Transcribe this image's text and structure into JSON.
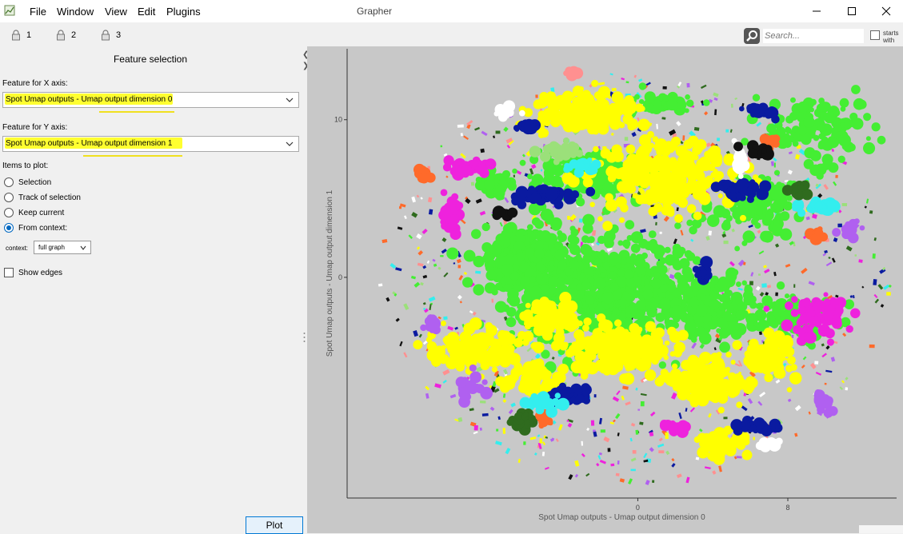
{
  "window": {
    "title": "Grapher",
    "menu": [
      "File",
      "Window",
      "View",
      "Edit",
      "Plugins"
    ]
  },
  "toolbar": {
    "locks": [
      "1",
      "2",
      "3"
    ],
    "search_placeholder": "Search...",
    "starts_with_label_1": "starts",
    "starts_with_label_2": "with"
  },
  "panel": {
    "title": "Feature selection",
    "x_label": "Feature for X axis:",
    "x_value": "Spot Umap outputs - Umap output dimension 0",
    "y_label": "Feature for Y axis:",
    "y_value": "Spot Umap outputs - Umap output dimension 1",
    "items_label": "Items to plot:",
    "radios": [
      {
        "label": "Selection",
        "checked": false
      },
      {
        "label": "Track of selection",
        "checked": false
      },
      {
        "label": "Keep current",
        "checked": false
      },
      {
        "label": "From context:",
        "checked": true
      }
    ],
    "context_label": "context:",
    "context_value": "full graph",
    "show_edges_label": "Show edges",
    "show_edges_checked": false,
    "plot_button": "Plot"
  },
  "chart_data": {
    "type": "scatter",
    "xlabel": "Spot Umap outputs - Umap output dimension 0",
    "ylabel": "Spot Umap outputs - Umap output dimension 1",
    "x_ticks": [
      0,
      8
    ],
    "y_ticks": [
      10,
      0
    ],
    "xlim": [
      -15.5,
      13.8
    ],
    "ylim": [
      -14,
      14.5
    ],
    "grid": false,
    "colors": {
      "green": "#44ee33",
      "yellow": "#ffff00",
      "navy": "#0a1aa0",
      "magenta": "#ee22dd",
      "orange": "#ff6a2a",
      "cyan": "#33eeee",
      "violet": "#b060f0",
      "darkgreen": "#2f6b1e",
      "white": "#ffffff",
      "black": "#111111",
      "lightgreen": "#9be07a",
      "pink": "#ff9090"
    },
    "clusters": [
      {
        "color": "green",
        "x": -1.7,
        "y": -1,
        "sx": 4.8,
        "sy": 3.2,
        "n": 700
      },
      {
        "color": "green",
        "x": -6,
        "y": 1,
        "sx": 2.2,
        "sy": 2.0,
        "n": 250
      },
      {
        "color": "green",
        "x": 4,
        "y": -2,
        "sx": 2.2,
        "sy": 1.8,
        "n": 200
      },
      {
        "color": "green",
        "x": 6.5,
        "y": 4.5,
        "sx": 1.8,
        "sy": 1.6,
        "n": 120
      },
      {
        "color": "green",
        "x": -2,
        "y": 6.5,
        "sx": 3,
        "sy": 1.2,
        "n": 180
      },
      {
        "color": "green",
        "x": 8.5,
        "y": -2.5,
        "sx": 1.8,
        "sy": 1.2,
        "n": 100
      },
      {
        "color": "green",
        "x": 9.5,
        "y": 9.5,
        "sx": 2.5,
        "sy": 2.0,
        "n": 120
      },
      {
        "color": "green",
        "x": -7.5,
        "y": 6,
        "sx": 0.8,
        "sy": 1,
        "n": 40
      },
      {
        "color": "green",
        "x": 1.5,
        "y": 11,
        "sx": 1.5,
        "sy": 0.6,
        "n": 50
      },
      {
        "color": "yellow",
        "x": -1,
        "y": -4.5,
        "sx": 2.5,
        "sy": 1.2,
        "n": 220
      },
      {
        "color": "yellow",
        "x": -3,
        "y": 10.5,
        "sx": 2.3,
        "sy": 1.0,
        "n": 180
      },
      {
        "color": "yellow",
        "x": 1.5,
        "y": 6.5,
        "sx": 3.2,
        "sy": 2.0,
        "n": 320
      },
      {
        "color": "yellow",
        "x": -8.5,
        "y": -4.5,
        "sx": 2.2,
        "sy": 1.2,
        "n": 150
      },
      {
        "color": "yellow",
        "x": 3.5,
        "y": -6.5,
        "sx": 2.0,
        "sy": 1.2,
        "n": 170
      },
      {
        "color": "yellow",
        "x": 7,
        "y": -5,
        "sx": 1.3,
        "sy": 1.2,
        "n": 100
      },
      {
        "color": "yellow",
        "x": -4.5,
        "y": -2.5,
        "sx": 1.3,
        "sy": 1.0,
        "n": 80
      },
      {
        "color": "yellow",
        "x": 4.5,
        "y": -10.5,
        "sx": 1.0,
        "sy": 0.7,
        "n": 50
      },
      {
        "color": "yellow",
        "x": -5.5,
        "y": -6.5,
        "sx": 1.5,
        "sy": 0.8,
        "n": 60
      },
      {
        "color": "navy",
        "x": -5,
        "y": 5.2,
        "sx": 1.6,
        "sy": 0.35,
        "n": 70
      },
      {
        "color": "navy",
        "x": 5.5,
        "y": 5.5,
        "sx": 0.8,
        "sy": 0.5,
        "n": 40
      },
      {
        "color": "navy",
        "x": -3.5,
        "y": -7.5,
        "sx": 0.9,
        "sy": 0.5,
        "n": 40
      },
      {
        "color": "navy",
        "x": 6.5,
        "y": 10.5,
        "sx": 0.9,
        "sy": 0.3,
        "n": 25
      },
      {
        "color": "navy",
        "x": -6,
        "y": 9.5,
        "sx": 0.5,
        "sy": 0.3,
        "n": 15
      },
      {
        "color": "navy",
        "x": 6.5,
        "y": -9.5,
        "sx": 1.2,
        "sy": 0.3,
        "n": 30
      },
      {
        "color": "navy",
        "x": 3.5,
        "y": 0.3,
        "sx": 0.3,
        "sy": 0.5,
        "n": 15
      },
      {
        "color": "magenta",
        "x": 9.5,
        "y": -2.5,
        "sx": 1.4,
        "sy": 1.0,
        "n": 80
      },
      {
        "color": "magenta",
        "x": -9,
        "y": 7,
        "sx": 1.0,
        "sy": 0.4,
        "n": 40
      },
      {
        "color": "magenta",
        "x": -10,
        "y": 4,
        "sx": 0.5,
        "sy": 1.0,
        "n": 25
      },
      {
        "color": "magenta",
        "x": 2,
        "y": -9.5,
        "sx": 0.6,
        "sy": 0.3,
        "n": 15
      },
      {
        "color": "orange",
        "x": -11.5,
        "y": 6.5,
        "sx": 0.4,
        "sy": 0.4,
        "n": 15
      },
      {
        "color": "orange",
        "x": 7,
        "y": 8.5,
        "sx": 0.4,
        "sy": 0.4,
        "n": 12
      },
      {
        "color": "orange",
        "x": -5,
        "y": -9,
        "sx": 0.4,
        "sy": 0.4,
        "n": 12
      },
      {
        "color": "orange",
        "x": 9.5,
        "y": 2.5,
        "sx": 0.4,
        "sy": 0.3,
        "n": 10
      },
      {
        "color": "cyan",
        "x": -5,
        "y": -8,
        "sx": 1.0,
        "sy": 0.5,
        "n": 30
      },
      {
        "color": "cyan",
        "x": 9.5,
        "y": 4.5,
        "sx": 1.0,
        "sy": 0.4,
        "n": 25
      },
      {
        "color": "cyan",
        "x": -3,
        "y": 7,
        "sx": 0.8,
        "sy": 0.4,
        "n": 20
      },
      {
        "color": "violet",
        "x": -9,
        "y": -7,
        "sx": 0.6,
        "sy": 0.8,
        "n": 20
      },
      {
        "color": "violet",
        "x": 11.5,
        "y": 3,
        "sx": 0.5,
        "sy": 0.6,
        "n": 15
      },
      {
        "color": "violet",
        "x": -11,
        "y": -3,
        "sx": 0.4,
        "sy": 0.5,
        "n": 12
      },
      {
        "color": "violet",
        "x": 10,
        "y": -8,
        "sx": 0.5,
        "sy": 0.5,
        "n": 12
      },
      {
        "color": "darkgreen",
        "x": -6,
        "y": -9,
        "sx": 0.8,
        "sy": 0.5,
        "n": 25
      },
      {
        "color": "darkgreen",
        "x": 8.5,
        "y": 5.5,
        "sx": 0.5,
        "sy": 0.4,
        "n": 15
      },
      {
        "color": "white",
        "x": 5.5,
        "y": 7.5,
        "sx": 0.25,
        "sy": 0.9,
        "n": 25
      },
      {
        "color": "white",
        "x": -7,
        "y": 10.5,
        "sx": 0.4,
        "sy": 0.3,
        "n": 10
      },
      {
        "color": "white",
        "x": 7,
        "y": -10.5,
        "sx": 0.6,
        "sy": 0.3,
        "n": 12
      },
      {
        "color": "black",
        "x": 6.5,
        "y": 8,
        "sx": 0.8,
        "sy": 0.4,
        "n": 15
      },
      {
        "color": "black",
        "x": -7,
        "y": 4,
        "sx": 0.5,
        "sy": 0.3,
        "n": 10
      },
      {
        "color": "lightgreen",
        "x": -4,
        "y": 8,
        "sx": 1.2,
        "sy": 0.4,
        "n": 25
      },
      {
        "color": "pink",
        "x": -3.5,
        "y": 13,
        "sx": 0.4,
        "sy": 0.2,
        "n": 6
      }
    ],
    "scatter_background": 900
  }
}
